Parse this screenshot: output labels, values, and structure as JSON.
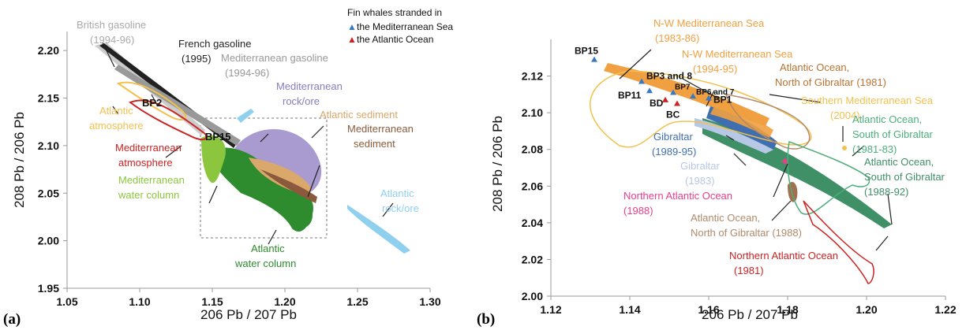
{
  "colors": {
    "purple": "#a99bd0",
    "brown": "#8b5a3c",
    "tan": "#d9a86a",
    "green_dark": "#2e8b2e",
    "green_light": "#8cc63e",
    "light_blue": "#8fd0ef",
    "gold": "#f2c14e",
    "grey": "#bbbbbb",
    "black": "#222222",
    "red": "#cc2222",
    "orange": "#f0a040",
    "navy_blue": "#3f6fb0",
    "pale_blue": "#b7c8e6",
    "pink": "#e83e8c",
    "teal": "#4caf7a",
    "dark_teal": "#3f8f67"
  },
  "chart_data": [
    {
      "panel_label": "(a)",
      "type": "scatter",
      "xlim": [
        1.05,
        1.3
      ],
      "ylim": [
        1.95,
        2.22
      ],
      "xticks": [
        "1.05",
        "1.10",
        "1.15",
        "1.20",
        "1.25",
        "1.30"
      ],
      "yticks": [
        "1.95",
        "2.00",
        "2.05",
        "2.10",
        "2.15",
        "2.20"
      ],
      "xlabel": "206 Pb / 207 Pb",
      "ylabel": "208 Pb / 206 Pb",
      "regions": [
        {
          "label": "Mediterranean rock/ore",
          "color": "#a99bd0"
        },
        {
          "label": "Atlantic sediment",
          "color": "#d9a86a"
        },
        {
          "label": "Mediterranean sediment",
          "color": "#8b5a3c"
        },
        {
          "label": "Atlantic water column",
          "color": "#2e8b2e"
        },
        {
          "label": "Mediterranean water column",
          "color": "#8cc63e"
        },
        {
          "label": "Atlantic rock/ore",
          "color": "#8fd0ef"
        },
        {
          "label": "Atlantic atmosphere",
          "color": "#f2c14e"
        },
        {
          "label": "Mediterranean atmosphere",
          "color": "#cc2222"
        },
        {
          "label": "British gasoline (1994-96)",
          "color": "#bbbbbb"
        },
        {
          "label": "French gasoline (1995)",
          "color": "#222222"
        },
        {
          "label": "Mediterranean gasoline (1994-96)",
          "color": "#999999"
        }
      ],
      "point_labels": [
        "BP2",
        "BP15"
      ],
      "legend_title": "Fin whales stranded in",
      "legend": [
        {
          "label": "the Mediterranean Sea",
          "color": "#3a78c3",
          "marker": "▲"
        },
        {
          "label": "the Atlantic Ocean",
          "color": "#cc2222",
          "marker": "▲"
        }
      ]
    },
    {
      "panel_label": "(b)",
      "type": "scatter",
      "xlim": [
        1.12,
        1.22
      ],
      "ylim": [
        2.0,
        2.14
      ],
      "xticks": [
        "1.12",
        "1.14",
        "1.16",
        "1.18",
        "1.20",
        "1.22"
      ],
      "yticks": [
        "2.00",
        "2.02",
        "2.04",
        "2.06",
        "2.08",
        "2.10",
        "2.12"
      ],
      "xlabel": "206 Pb / 207 Pb",
      "ylabel": "208 Pb / 206 Pb",
      "regions": [
        {
          "label": "N-W Mediterranean Sea (1983-86)",
          "color": "#f0a040"
        },
        {
          "label": "N-W Mediterranean Sea (1994-95)",
          "color": "#f0a040"
        },
        {
          "label": "Atlantic Ocean, North of Gibraltar (1981)",
          "color": "#b87333"
        },
        {
          "label": "Southern Mediterranean Sea (2004)",
          "color": "#f2c14e"
        },
        {
          "label": "Atlantic Ocean, South of Gibraltar (1981-83)",
          "color": "#4caf7a"
        },
        {
          "label": "Atlantic Ocean, South of Gibraltar (1988-92)",
          "color": "#3f8f67"
        },
        {
          "label": "Gibraltar (1989-95)",
          "color": "#3f6fb0"
        },
        {
          "label": "Gibraltar (1983)",
          "color": "#b7c8e6"
        },
        {
          "label": "Northern Atlantic Ocean (1988)",
          "color": "#e83e8c"
        },
        {
          "label": "Atlantic Ocean, North of Gibraltar (1988)",
          "color": "#b08a6a"
        },
        {
          "label": "Northern Atlantic Ocean (1981)",
          "color": "#cc2222"
        }
      ],
      "points": [
        {
          "label": "BP15",
          "x": 1.131,
          "y": 2.129,
          "color": "#3a78c3"
        },
        {
          "label": "BP3 and 8",
          "x": 1.143,
          "y": 2.117,
          "color": "#3a78c3"
        },
        {
          "label": "BP11",
          "x": 1.145,
          "y": 2.112,
          "color": "#3a78c3"
        },
        {
          "label": "BP7",
          "x": 1.151,
          "y": 2.111,
          "color": "#3a78c3"
        },
        {
          "label": "BP6 and 7",
          "x": 1.156,
          "y": 2.109,
          "color": "#3a78c3"
        },
        {
          "label": "BP1",
          "x": 1.16,
          "y": 2.108,
          "color": "#3a78c3"
        },
        {
          "label": "BD",
          "x": 1.149,
          "y": 2.107,
          "color": "#cc2222"
        },
        {
          "label": "BC",
          "x": 1.152,
          "y": 2.105,
          "color": "#cc2222"
        }
      ]
    }
  ],
  "text": {
    "a_british": "British gasoline",
    "a_british_years": "(1994-96)",
    "a_french": "French gasoline",
    "a_french_years": "(1995)",
    "a_med_gas": "Mediterranean gasoline",
    "a_med_gas_years": "(1994-96)",
    "a_med_rock_1": "Mediterranean",
    "a_med_rock_2": "rock/ore",
    "a_atl_sed": "Atlantic sediment",
    "a_med_sed_1": "Mediterranean",
    "a_med_sed_2": "sediment",
    "a_atl_atm_1": "Atlantic",
    "a_atl_atm_2": "atmosphere",
    "a_med_atm_1": "Mediterranean",
    "a_med_atm_2": "atmosphere",
    "a_med_wc_1": "Mediterranean",
    "a_med_wc_2": "water column",
    "a_atl_wc_1": "Atlantic",
    "a_atl_wc_2": "water column",
    "a_atl_rock_1": "Atlantic",
    "a_atl_rock_2": "rock/ore",
    "a_bp2": "BP2",
    "a_bp15": "BP15",
    "b_nw_1": "N-W Mediterranean Sea",
    "b_nw_1y": "(1983-86)",
    "b_nw_2": "N-W Mediterranean Sea",
    "b_nw_2y": "(1994-95)",
    "b_atl_n_1": "Atlantic Ocean,",
    "b_atl_n_2": "North of Gibraltar (1981)",
    "b_south_med": "Southern Mediterranean Sea",
    "b_south_med_y": "(2004)",
    "b_atl_s1_1": "Atlantic Ocean,",
    "b_atl_s1_2": "South of Gibraltar",
    "b_atl_s1_3": "(1981-83)",
    "b_atl_s2_1": "Atlantic Ocean,",
    "b_atl_s2_2": "South of Gibraltar",
    "b_atl_s2_3": "(1988-92)",
    "b_gib1": "Gibraltar",
    "b_gib1y": "(1989-95)",
    "b_gib2": "Gibraltar",
    "b_gib2y": "(1983)",
    "b_nao88": "Northern Atlantic Ocean",
    "b_nao88y": "(1988)",
    "b_atl_n88_1": "Atlantic Ocean,",
    "b_atl_n88_2": "North of Gibraltar (1988)",
    "b_nao81": "Northern Atlantic Ocean",
    "b_nao81y": "(1981)"
  }
}
